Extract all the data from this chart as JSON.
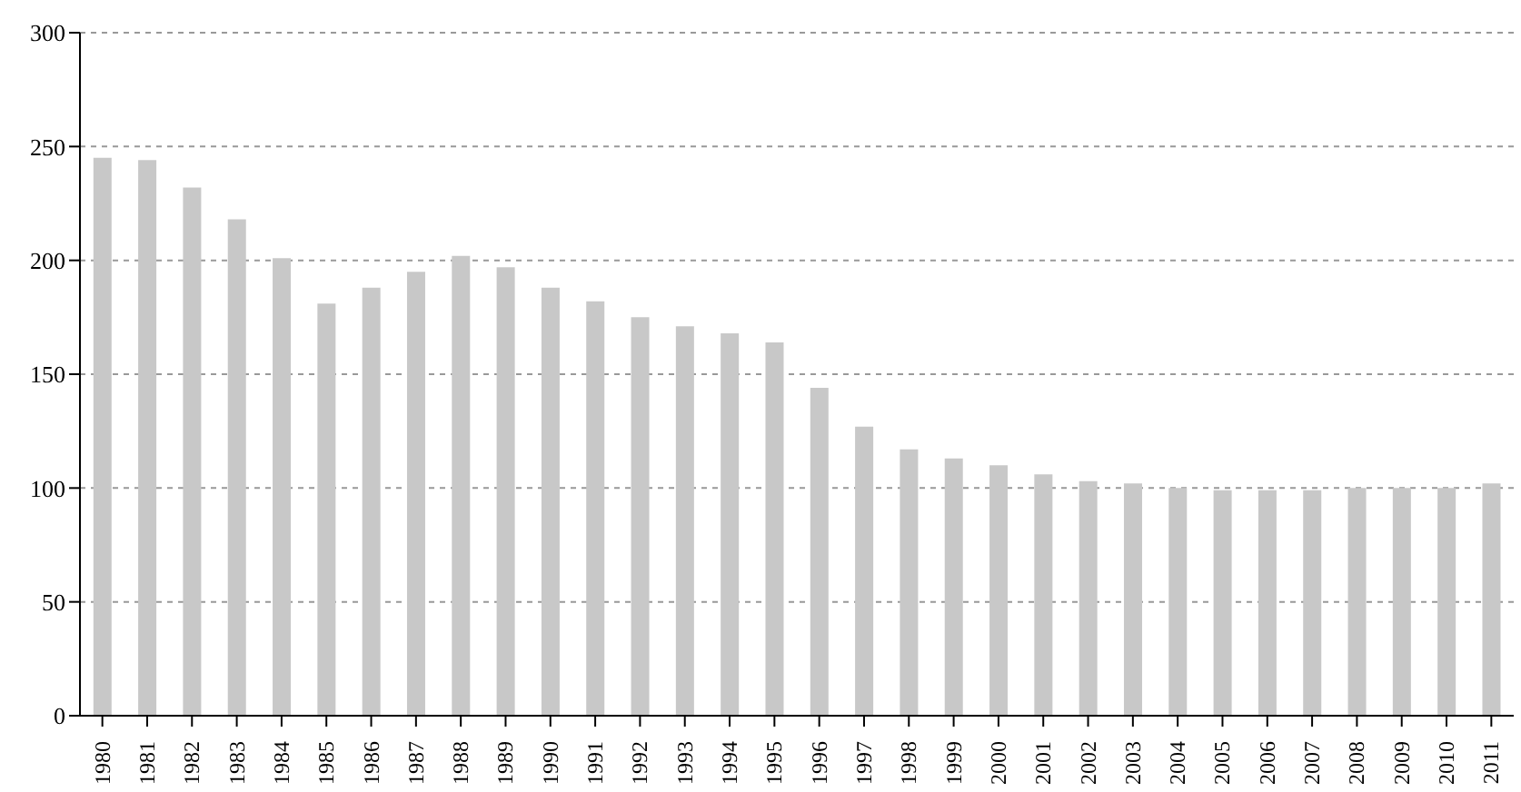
{
  "chart_data": {
    "type": "bar",
    "categories": [
      "1980",
      "1981",
      "1982",
      "1983",
      "1984",
      "1985",
      "1986",
      "1987",
      "1988",
      "1989",
      "1990",
      "1991",
      "1992",
      "1993",
      "1994",
      "1995",
      "1996",
      "1997",
      "1998",
      "1999",
      "2000",
      "2001",
      "2002",
      "2003",
      "2004",
      "2005",
      "2006",
      "2007",
      "2008",
      "2009",
      "2010",
      "2011"
    ],
    "values": [
      245,
      244,
      232,
      218,
      201,
      181,
      188,
      195,
      202,
      197,
      188,
      182,
      175,
      171,
      168,
      164,
      144,
      127,
      117,
      113,
      110,
      106,
      103,
      102,
      100,
      99,
      99,
      99,
      100,
      100,
      100,
      102
    ],
    "color": "#c8c8c8",
    "ylim": [
      0,
      300
    ],
    "yticks": [
      0,
      50,
      100,
      150,
      200,
      250,
      300
    ],
    "grid": "y"
  }
}
